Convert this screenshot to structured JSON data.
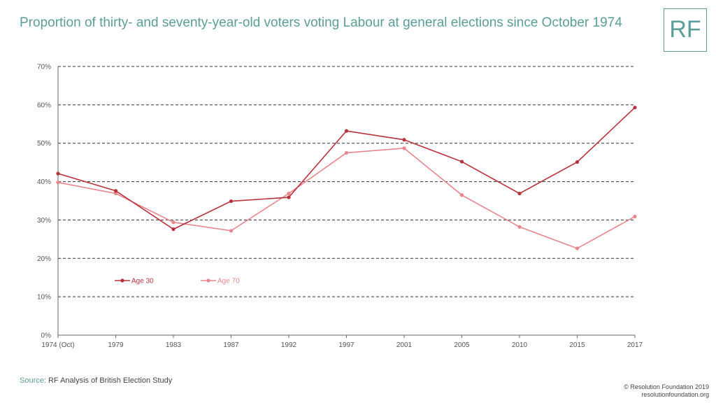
{
  "header": {
    "title": "Proportion of thirty- and seventy-year-old voters voting Labour at general elections since October 1974",
    "logo": "RF"
  },
  "footer": {
    "source_label": "Source:",
    "source_text": "RF Analysis of British Election Study",
    "copyright": "© Resolution Foundation 2019",
    "website": "resolutionfoundation.org"
  },
  "chart_data": {
    "type": "line",
    "categories": [
      "1974 (Oct)",
      "1979",
      "1983",
      "1987",
      "1992",
      "1997",
      "2001",
      "2005",
      "2010",
      "2015",
      "2017"
    ],
    "ylim": [
      0,
      70
    ],
    "yticks": [
      0,
      10,
      20,
      30,
      40,
      50,
      60,
      70
    ],
    "ytick_labels": [
      "0%",
      "10%",
      "20%",
      "30%",
      "40%",
      "50%",
      "60%",
      "70%"
    ],
    "grid": true,
    "legend_position": "inside-lower-left",
    "series": [
      {
        "name": "Age 30",
        "color": "#b8323c",
        "values": [
          42.1,
          37.6,
          27.6,
          34.9,
          35.9,
          53.2,
          50.9,
          45.2,
          36.9,
          45.1,
          59.3
        ]
      },
      {
        "name": "Age 70",
        "color": "#e8868c",
        "values": [
          39.8,
          36.9,
          29.4,
          27.2,
          36.9,
          47.5,
          48.7,
          36.5,
          28.2,
          22.6,
          30.9
        ]
      }
    ]
  }
}
